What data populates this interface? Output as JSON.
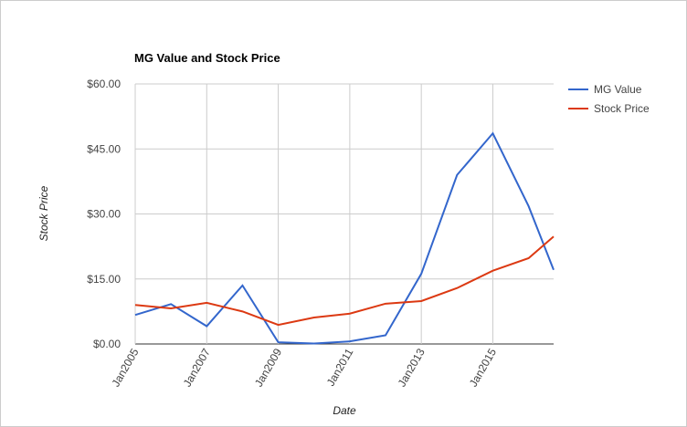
{
  "chart_data": {
    "type": "line",
    "title": "MG Value and Stock Price",
    "x_label": "Date",
    "y_label": "Stock Price",
    "x": [
      2005,
      2006,
      2007,
      2008,
      2009,
      2010,
      2011,
      2012,
      2013,
      2014,
      2015,
      2016,
      2016.7
    ],
    "series": [
      {
        "name": "MG Value",
        "color": "#3366cc",
        "values": [
          6.7,
          9.2,
          4.1,
          13.5,
          0.4,
          0.1,
          0.6,
          2.0,
          16.2,
          39.0,
          48.6,
          31.8,
          17.1
        ]
      },
      {
        "name": "Stock Price",
        "color": "#dc3912",
        "values": [
          9.0,
          8.2,
          9.5,
          7.5,
          4.4,
          6.1,
          7.0,
          9.3,
          9.9,
          12.9,
          16.9,
          19.8,
          24.8
        ]
      }
    ],
    "xlim": [
      2005,
      2016.7
    ],
    "xticks": [
      {
        "value": 2005,
        "label": "Jan2005"
      },
      {
        "value": 2007,
        "label": "Jan2007"
      },
      {
        "value": 2009,
        "label": "Jan2009"
      },
      {
        "value": 2011,
        "label": "Jan2011"
      },
      {
        "value": 2013,
        "label": "Jan2013"
      },
      {
        "value": 2015,
        "label": "Jan2015"
      }
    ],
    "ylim": [
      0,
      60
    ],
    "yticks": [
      {
        "value": 0,
        "label": "$0.00"
      },
      {
        "value": 15,
        "label": "$15.00"
      },
      {
        "value": 30,
        "label": "$30.00"
      },
      {
        "value": 45,
        "label": "$45.00"
      },
      {
        "value": 60,
        "label": "$60.00"
      }
    ],
    "grid": true,
    "legend": "right"
  }
}
